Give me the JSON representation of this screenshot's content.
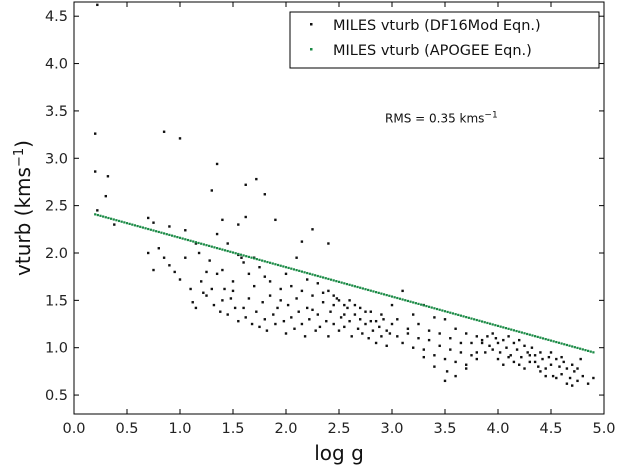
{
  "chart_data": {
    "type": "scatter",
    "xlabel": "log g",
    "ylabel": "vturb (kms",
    "ylabel_sup": "−1",
    "ylabel_close": ")",
    "xlim": [
      0.0,
      5.0
    ],
    "ylim": [
      0.3,
      4.65
    ],
    "xticks": [
      "0.0",
      "0.5",
      "1.0",
      "1.5",
      "2.0",
      "2.5",
      "3.0",
      "3.5",
      "4.0",
      "4.5",
      "5.0"
    ],
    "yticks": [
      "0.5",
      "1.0",
      "1.5",
      "2.0",
      "2.5",
      "3.0",
      "3.5",
      "4.0",
      "4.5"
    ],
    "legend_position": "top-right",
    "annotation": {
      "text": "RMS = 0.35 kms",
      "sup": "−1",
      "x": 3.0,
      "y": 3.42
    },
    "series": [
      {
        "name": "MILES vturb (DF16Mod Eqn.)",
        "color": "#111111",
        "points": [
          [
            0.22,
            4.62
          ],
          [
            0.2,
            3.26
          ],
          [
            0.2,
            2.86
          ],
          [
            0.32,
            2.81
          ],
          [
            0.22,
            2.45
          ],
          [
            0.3,
            2.6
          ],
          [
            0.38,
            2.3
          ],
          [
            0.85,
            3.28
          ],
          [
            1.0,
            3.21
          ],
          [
            1.35,
            2.94
          ],
          [
            1.62,
            2.72
          ],
          [
            1.72,
            2.78
          ],
          [
            1.8,
            2.62
          ],
          [
            2.25,
            2.25
          ],
          [
            2.15,
            2.12
          ],
          [
            2.4,
            2.1
          ],
          [
            1.62,
            2.38
          ],
          [
            1.3,
            2.66
          ],
          [
            1.4,
            2.35
          ],
          [
            1.55,
            2.3
          ],
          [
            1.9,
            2.35
          ],
          [
            0.7,
            2.37
          ],
          [
            0.75,
            2.32
          ],
          [
            0.9,
            2.28
          ],
          [
            1.05,
            2.24
          ],
          [
            1.15,
            2.1
          ],
          [
            0.7,
            2.0
          ],
          [
            0.75,
            1.82
          ],
          [
            0.8,
            2.05
          ],
          [
            0.85,
            1.95
          ],
          [
            0.9,
            1.87
          ],
          [
            0.95,
            1.8
          ],
          [
            1.0,
            1.72
          ],
          [
            1.05,
            1.95
          ],
          [
            1.1,
            1.62
          ],
          [
            1.12,
            1.48
          ],
          [
            1.15,
            1.42
          ],
          [
            1.2,
            1.7
          ],
          [
            1.25,
            1.55
          ],
          [
            1.28,
            1.92
          ],
          [
            1.3,
            1.62
          ],
          [
            1.32,
            1.45
          ],
          [
            1.35,
            1.78
          ],
          [
            1.38,
            1.38
          ],
          [
            1.4,
            1.5
          ],
          [
            1.42,
            1.62
          ],
          [
            1.45,
            1.35
          ],
          [
            1.48,
            1.52
          ],
          [
            1.5,
            1.7
          ],
          [
            1.52,
            1.42
          ],
          [
            1.55,
            1.28
          ],
          [
            1.58,
            1.95
          ],
          [
            1.6,
            1.42
          ],
          [
            1.62,
            1.32
          ],
          [
            1.65,
            1.52
          ],
          [
            1.68,
            1.25
          ],
          [
            1.7,
            1.65
          ],
          [
            1.72,
            1.38
          ],
          [
            1.75,
            1.22
          ],
          [
            1.78,
            1.48
          ],
          [
            1.8,
            1.3
          ],
          [
            1.82,
            1.18
          ],
          [
            1.85,
            1.55
          ],
          [
            1.88,
            1.35
          ],
          [
            1.9,
            1.25
          ],
          [
            1.92,
            1.42
          ],
          [
            1.95,
            1.62
          ],
          [
            1.98,
            1.28
          ],
          [
            2.0,
            1.15
          ],
          [
            2.02,
            1.45
          ],
          [
            2.05,
            1.32
          ],
          [
            2.08,
            1.2
          ],
          [
            2.1,
            1.52
          ],
          [
            2.12,
            1.38
          ],
          [
            2.15,
            1.25
          ],
          [
            2.18,
            1.12
          ],
          [
            2.2,
            1.42
          ],
          [
            2.22,
            1.3
          ],
          [
            2.25,
            1.55
          ],
          [
            2.28,
            1.18
          ],
          [
            2.3,
            1.35
          ],
          [
            2.32,
            1.22
          ],
          [
            2.35,
            1.48
          ],
          [
            2.38,
            1.28
          ],
          [
            2.4,
            1.12
          ],
          [
            2.42,
            1.38
          ],
          [
            2.45,
            1.25
          ],
          [
            2.48,
            1.52
          ],
          [
            2.5,
            1.18
          ],
          [
            2.52,
            1.32
          ],
          [
            2.55,
            1.22
          ],
          [
            2.58,
            1.42
          ],
          [
            2.6,
            1.28
          ],
          [
            2.62,
            1.12
          ],
          [
            2.65,
            1.35
          ],
          [
            2.68,
            1.2
          ],
          [
            2.7,
            1.3
          ],
          [
            2.72,
            1.15
          ],
          [
            2.75,
            1.25
          ],
          [
            2.78,
            1.1
          ],
          [
            2.8,
            1.28
          ],
          [
            2.82,
            1.18
          ],
          [
            2.85,
            1.05
          ],
          [
            2.88,
            1.22
          ],
          [
            2.9,
            1.12
          ],
          [
            2.92,
            1.3
          ],
          [
            2.95,
            1.02
          ],
          [
            2.98,
            1.15
          ],
          [
            3.0,
            1.25
          ],
          [
            3.05,
            1.12
          ],
          [
            3.1,
            1.05
          ],
          [
            3.15,
            1.2
          ],
          [
            3.2,
            1.0
          ],
          [
            3.25,
            1.1
          ],
          [
            3.3,
            0.98
          ],
          [
            3.35,
            1.08
          ],
          [
            3.4,
            0.92
          ],
          [
            3.45,
            1.02
          ],
          [
            3.5,
            0.88
          ],
          [
            3.52,
            0.75
          ],
          [
            3.55,
            0.98
          ],
          [
            3.6,
            0.85
          ],
          [
            3.65,
            0.95
          ],
          [
            3.7,
            0.82
          ],
          [
            3.75,
            0.92
          ],
          [
            3.8,
            0.88
          ],
          [
            1.35,
            2.2
          ],
          [
            1.45,
            2.1
          ],
          [
            1.55,
            1.98
          ],
          [
            1.6,
            1.9
          ],
          [
            1.7,
            1.95
          ],
          [
            1.8,
            1.75
          ],
          [
            2.0,
            1.78
          ],
          [
            2.05,
            1.65
          ],
          [
            2.1,
            1.95
          ],
          [
            2.2,
            1.72
          ],
          [
            2.3,
            1.68
          ],
          [
            2.4,
            1.6
          ],
          [
            2.45,
            1.55
          ],
          [
            2.5,
            1.5
          ],
          [
            2.55,
            1.45
          ],
          [
            2.6,
            1.5
          ],
          [
            2.7,
            1.42
          ],
          [
            2.8,
            1.38
          ],
          [
            2.9,
            1.35
          ],
          [
            3.0,
            1.45
          ],
          [
            3.1,
            1.6
          ],
          [
            3.2,
            1.35
          ],
          [
            3.3,
            1.45
          ],
          [
            3.4,
            1.32
          ],
          [
            3.5,
            1.3
          ],
          [
            3.6,
            1.2
          ],
          [
            3.7,
            1.15
          ],
          [
            3.8,
            1.12
          ],
          [
            3.85,
            1.05
          ],
          [
            1.25,
            1.8
          ],
          [
            1.18,
            2.0
          ],
          [
            1.22,
            1.58
          ],
          [
            1.4,
            1.82
          ],
          [
            1.5,
            1.6
          ],
          [
            1.65,
            1.78
          ],
          [
            1.75,
            1.85
          ],
          [
            1.85,
            1.7
          ],
          [
            1.95,
            1.5
          ],
          [
            2.15,
            1.6
          ],
          [
            2.25,
            1.4
          ],
          [
            2.35,
            1.58
          ],
          [
            2.45,
            1.45
          ],
          [
            2.55,
            1.35
          ],
          [
            2.65,
            1.45
          ],
          [
            2.75,
            1.38
          ],
          [
            2.85,
            1.28
          ],
          [
            2.95,
            1.18
          ],
          [
            3.05,
            1.3
          ],
          [
            3.15,
            1.15
          ],
          [
            3.25,
            1.25
          ],
          [
            3.35,
            1.18
          ],
          [
            3.45,
            1.15
          ],
          [
            3.55,
            1.1
          ],
          [
            3.65,
            1.05
          ],
          [
            3.85,
            1.08
          ],
          [
            3.88,
            0.95
          ],
          [
            3.9,
            1.12
          ],
          [
            3.92,
            1.02
          ],
          [
            3.95,
            0.98
          ],
          [
            3.98,
            1.1
          ],
          [
            4.0,
            1.05
          ],
          [
            4.02,
            0.95
          ],
          [
            4.05,
            1.08
          ],
          [
            4.08,
            1.0
          ],
          [
            4.1,
            1.12
          ],
          [
            4.12,
            0.92
          ],
          [
            4.15,
            1.05
          ],
          [
            4.18,
            0.98
          ],
          [
            4.2,
            1.08
          ],
          [
            4.22,
            0.9
          ],
          [
            4.25,
            1.02
          ],
          [
            4.28,
            0.95
          ],
          [
            4.3,
            0.85
          ],
          [
            4.32,
            1.0
          ],
          [
            4.35,
            0.92
          ],
          [
            4.38,
            0.8
          ],
          [
            4.4,
            0.95
          ],
          [
            4.42,
            0.88
          ],
          [
            4.45,
            0.78
          ],
          [
            4.48,
            0.9
          ],
          [
            4.5,
            0.82
          ],
          [
            4.52,
            0.7
          ],
          [
            4.55,
            0.88
          ],
          [
            4.58,
            0.8
          ],
          [
            4.6,
            0.72
          ],
          [
            4.62,
            0.85
          ],
          [
            4.65,
            0.78
          ],
          [
            4.68,
            0.68
          ],
          [
            4.7,
            0.82
          ],
          [
            4.72,
            0.75
          ],
          [
            4.75,
            0.65
          ],
          [
            4.78,
            0.88
          ],
          [
            4.8,
            0.7
          ],
          [
            4.85,
            0.62
          ],
          [
            4.9,
            0.68
          ],
          [
            3.95,
            1.15
          ],
          [
            4.0,
            0.88
          ],
          [
            4.05,
            0.82
          ],
          [
            4.1,
            0.9
          ],
          [
            4.15,
            0.85
          ],
          [
            4.2,
            0.82
          ],
          [
            4.25,
            0.78
          ],
          [
            4.3,
            0.92
          ],
          [
            4.35,
            0.85
          ],
          [
            4.4,
            0.75
          ],
          [
            4.45,
            0.7
          ],
          [
            4.5,
            0.95
          ],
          [
            4.55,
            0.68
          ],
          [
            4.6,
            0.9
          ],
          [
            4.65,
            0.62
          ],
          [
            4.7,
            0.6
          ],
          [
            4.75,
            0.78
          ],
          [
            3.5,
            0.65
          ],
          [
            3.4,
            0.8
          ],
          [
            3.3,
            0.9
          ],
          [
            3.6,
            0.7
          ],
          [
            3.7,
            0.78
          ],
          [
            3.8,
            0.95
          ],
          [
            3.75,
            1.05
          ]
        ]
      },
      {
        "name": "MILES vturb (APOGEE Eqn.)",
        "color": "#1a8a45",
        "line": {
          "slope": -0.31,
          "intercept": 2.47,
          "x_from": 0.2,
          "x_to": 4.9
        }
      }
    ]
  }
}
